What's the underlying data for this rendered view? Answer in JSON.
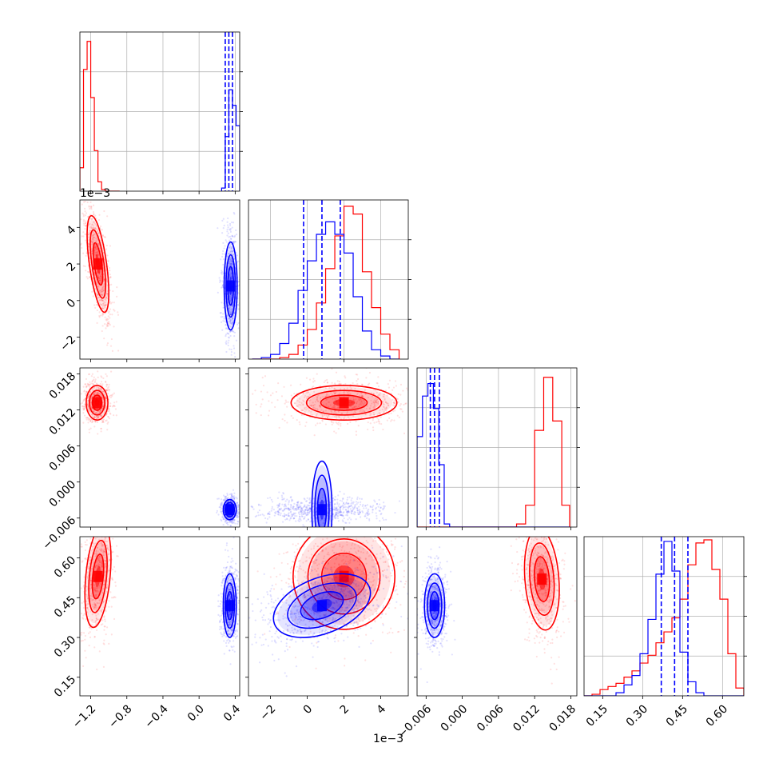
{
  "chart_data": {
    "type": "corner",
    "colors": {
      "series_a": "#ff0000",
      "series_b": "#0000ff",
      "grid": "#b0b0b0"
    },
    "grid": true,
    "params": [
      {
        "ticks": [
          -1.2,
          -0.8,
          -0.4,
          0.0,
          0.4
        ],
        "tick_labels": [
          "−1.2",
          "−0.8",
          "−0.4",
          "0.0",
          "0.4"
        ],
        "range": [
          -1.32,
          0.45
        ],
        "offset_label": ""
      },
      {
        "ticks": [
          -2,
          0,
          2,
          4
        ],
        "tick_labels": [
          "−2",
          "0",
          "2",
          "4"
        ],
        "range": [
          -3.2,
          5.5
        ],
        "offset_label": "1e−3"
      },
      {
        "ticks": [
          -0.006,
          0.0,
          0.006,
          0.012,
          0.018
        ],
        "tick_labels": [
          "−0.006",
          "0.000",
          "0.006",
          "0.012",
          "0.018"
        ],
        "range": [
          -0.0075,
          0.019
        ],
        "offset_label": ""
      },
      {
        "ticks": [
          0.15,
          0.3,
          0.45,
          0.6
        ],
        "tick_labels": [
          "0.15",
          "0.30",
          "0.45",
          "0.60"
        ],
        "range": [
          0.08,
          0.68
        ],
        "offset_label": ""
      }
    ],
    "quantiles_series_b": [
      [
        0.29,
        0.33,
        0.37
      ],
      [
        -0.2,
        0.8,
        1.8
      ],
      [
        -0.0053,
        -0.0046,
        -0.0038
      ],
      [
        0.37,
        0.42,
        0.47
      ]
    ],
    "histograms": [
      {
        "bins": [
          -1.32,
          -1.28,
          -1.24,
          -1.2,
          -1.16,
          -1.12,
          -1.08,
          -1.04,
          -1.0,
          -0.96,
          -0.92,
          -0.88
        ],
        "series_a": [
          0.15,
          0.78,
          0.96,
          0.6,
          0.26,
          0.06,
          0.01,
          0.0,
          0.0,
          0.0,
          0.0
        ],
        "series_b_bins": [
          0.25,
          0.29,
          0.33,
          0.37,
          0.41,
          0.45
        ],
        "series_b": [
          0.02,
          0.35,
          0.65,
          0.55,
          0.42
        ]
      },
      {
        "bins": [
          -3.0,
          -2.5,
          -2.0,
          -1.5,
          -1.0,
          -0.5,
          0.0,
          0.5,
          1.0,
          1.5,
          2.0,
          2.5,
          3.0,
          3.5,
          4.0,
          4.5,
          5.0
        ],
        "series_a": [
          0.0,
          0.0,
          0.0,
          0.01,
          0.03,
          0.09,
          0.19,
          0.36,
          0.58,
          0.79,
          0.98,
          0.93,
          0.56,
          0.33,
          0.16,
          0.06
        ],
        "series_b": [
          0.0,
          0.01,
          0.03,
          0.1,
          0.23,
          0.44,
          0.63,
          0.8,
          0.88,
          0.8,
          0.68,
          0.4,
          0.18,
          0.06,
          0.02,
          0.0
        ]
      },
      {
        "bins": [
          -0.0075,
          -0.0066,
          -0.0057,
          -0.0048,
          -0.0039,
          -0.003,
          -0.0021,
          0.0,
          0.006,
          0.009,
          0.0105,
          0.012,
          0.0135,
          0.015,
          0.0165,
          0.0178
        ],
        "series_a": [
          0.0,
          0.0,
          0.0,
          0.0,
          0.0,
          0.0,
          0.0,
          0.0,
          0.0,
          0.02,
          0.14,
          0.62,
          0.96,
          0.68,
          0.14
        ],
        "series_b": [
          0.58,
          0.84,
          0.92,
          0.76,
          0.4,
          0.02,
          0.0,
          0.0,
          0.0,
          0.0,
          0.0,
          0.0,
          0.0,
          0.0,
          0.0
        ]
      },
      {
        "bins": [
          0.08,
          0.11,
          0.14,
          0.17,
          0.2,
          0.23,
          0.26,
          0.29,
          0.32,
          0.35,
          0.38,
          0.41,
          0.44,
          0.47,
          0.5,
          0.53,
          0.56,
          0.59,
          0.62,
          0.65,
          0.68
        ],
        "series_a": [
          0.0,
          0.01,
          0.04,
          0.06,
          0.08,
          0.12,
          0.16,
          0.21,
          0.26,
          0.34,
          0.41,
          0.5,
          0.62,
          0.84,
          0.98,
          1.0,
          0.81,
          0.62,
          0.27,
          0.05
        ],
        "series_b": [
          0.0,
          0.0,
          0.0,
          0.0,
          0.02,
          0.07,
          0.13,
          0.27,
          0.49,
          0.78,
          0.99,
          0.8,
          0.28,
          0.09,
          0.02,
          0.0,
          0.0,
          0.0,
          0.0,
          0.0
        ]
      }
    ],
    "pairs": [
      {
        "row": 1,
        "col": 0,
        "series_a": {
          "center": [
            -1.12,
            2.0
          ],
          "sd": [
            0.05,
            1.1
          ],
          "rho": -0.6
        },
        "series_b": {
          "center": [
            0.35,
            0.8
          ],
          "sd": [
            0.03,
            1.0
          ],
          "rho": 0.0
        }
      },
      {
        "row": 2,
        "col": 0,
        "series_a": {
          "center": [
            -1.13,
            0.0132
          ],
          "sd": [
            0.05,
            0.0012
          ],
          "rho": 0.0
        },
        "series_b": {
          "center": [
            0.34,
            -0.0046
          ],
          "sd": [
            0.03,
            0.0007
          ],
          "rho": 0.0
        }
      },
      {
        "row": 2,
        "col": 1,
        "series_a": {
          "center": [
            2.0,
            0.0132
          ],
          "sd": [
            1.2,
            0.0012
          ],
          "rho": 0.0
        },
        "series_b": {
          "center": [
            0.8,
            -0.0046
          ],
          "sd": [
            1.1,
            0.0007
          ],
          "rho": 0.0
        }
      },
      {
        "row": 3,
        "col": 0,
        "series_a": {
          "center": [
            -1.12,
            0.53
          ],
          "sd": [
            0.06,
            0.08
          ],
          "rho": 0.35
        },
        "series_b": {
          "center": [
            0.34,
            0.42
          ],
          "sd": [
            0.03,
            0.05
          ],
          "rho": 0.0
        }
      },
      {
        "row": 3,
        "col": 1,
        "series_a": {
          "center": [
            2.0,
            0.53
          ],
          "sd": [
            1.2,
            0.08
          ],
          "rho": 0.0
        },
        "series_b": {
          "center": [
            0.8,
            0.42
          ],
          "sd": [
            1.1,
            0.05
          ],
          "rho": 0.4
        }
      },
      {
        "row": 3,
        "col": 2,
        "series_a": {
          "center": [
            0.0132,
            0.52
          ],
          "sd": [
            0.0012,
            0.08
          ],
          "rho": -0.2
        },
        "series_b": {
          "center": [
            -0.0046,
            0.42
          ],
          "sd": [
            0.0007,
            0.05
          ],
          "rho": 0.0
        }
      }
    ]
  }
}
